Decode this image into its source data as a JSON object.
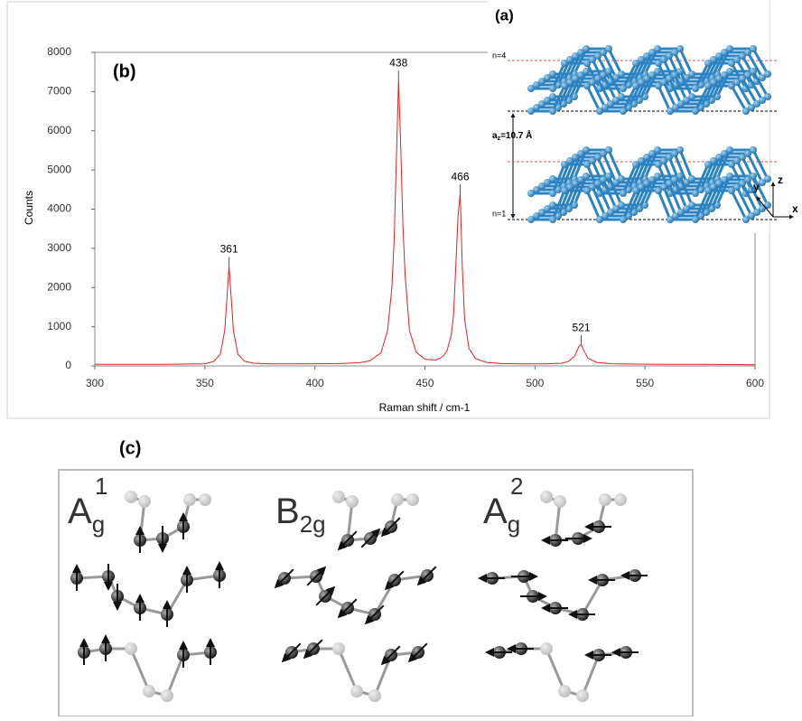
{
  "chart_data": {
    "type": "line",
    "title": "(b)",
    "x_label": "Raman shift / cm-1",
    "y_label": "Counts",
    "color": "#e02020",
    "x": [
      300,
      310,
      320,
      330,
      340,
      350,
      354,
      357,
      359,
      360,
      361,
      362,
      363,
      365,
      368,
      372,
      380,
      390,
      400,
      410,
      420,
      425,
      430,
      433,
      435,
      436,
      437,
      438,
      439,
      440,
      441,
      443,
      446,
      450,
      455,
      458,
      460,
      462,
      463,
      464,
      465,
      466,
      467,
      468,
      470,
      473,
      478,
      485,
      495,
      505,
      512,
      515,
      518,
      520,
      521,
      522,
      524,
      528,
      535,
      545,
      560,
      575,
      590,
      600
    ],
    "values": [
      40,
      40,
      40,
      40,
      45,
      55,
      110,
      300,
      900,
      1700,
      2550,
      1700,
      900,
      300,
      120,
      70,
      50,
      50,
      55,
      60,
      80,
      130,
      330,
      900,
      2000,
      3200,
      5200,
      7300,
      5600,
      3600,
      2300,
      900,
      350,
      170,
      150,
      230,
      380,
      800,
      1300,
      2500,
      3800,
      4400,
      2500,
      1200,
      450,
      190,
      90,
      60,
      50,
      50,
      70,
      110,
      250,
      500,
      550,
      420,
      200,
      90,
      55,
      45,
      40,
      40,
      35,
      30
    ],
    "xlim": [
      300,
      600
    ],
    "xticks": [
      300,
      350,
      400,
      450,
      500,
      550,
      600
    ],
    "ylim": [
      0,
      8000
    ],
    "yticks": [
      0,
      1000,
      2000,
      3000,
      4000,
      5000,
      6000,
      7000,
      8000
    ],
    "annotations": [
      {
        "text": "361",
        "x": 361,
        "y": 2550
      },
      {
        "text": "438",
        "x": 438,
        "y": 7300
      },
      {
        "text": "466",
        "x": 466,
        "y": 4400
      },
      {
        "text": "521",
        "x": 521,
        "y": 550
      }
    ]
  },
  "panel_a": {
    "label": "(a)",
    "top_layer": "n=4",
    "bottom_layer": "n=1",
    "spacing": {
      "base": "a",
      "sub": "z",
      "rest": "=10.7 Å"
    },
    "axes": [
      "x",
      "y",
      "z"
    ]
  },
  "panel_c": {
    "label": "(c)",
    "modes": [
      {
        "base": "A",
        "sub": "g",
        "sup": "1"
      },
      {
        "base": "B",
        "sub": "2g",
        "sup": ""
      },
      {
        "base": "A",
        "sub": "g",
        "sup": "2"
      }
    ]
  }
}
